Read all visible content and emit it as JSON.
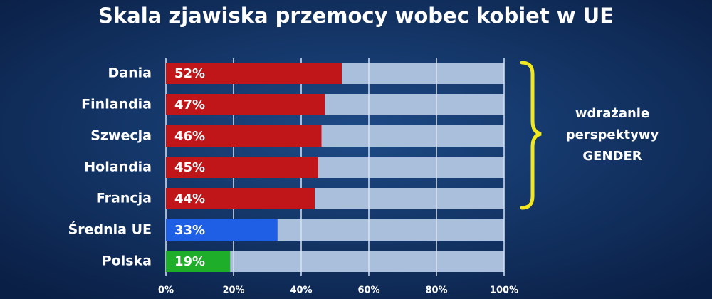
{
  "chart_data": {
    "type": "bar",
    "orientation": "horizontal",
    "title": "Skala zjawiska przemocy wobec kobiet w UE",
    "categories": [
      "Dania",
      "Finlandia",
      "Szwecja",
      "Holandia",
      "Francja",
      "Średnia UE",
      "Polska"
    ],
    "values": [
      52,
      47,
      46,
      45,
      44,
      33,
      19
    ],
    "value_labels": [
      "52%",
      "47%",
      "46%",
      "45%",
      "44%",
      "33%",
      "19%"
    ],
    "colors": [
      "#c0161a",
      "#c0161a",
      "#c0161a",
      "#c0161a",
      "#c0161a",
      "#1f5fe6",
      "#1fae2a"
    ],
    "background_color": "#a9bfdc",
    "xlim": [
      0,
      100
    ],
    "xticks": [
      {
        "value": 0,
        "label": "0%"
      },
      {
        "value": 20,
        "label": "20%"
      },
      {
        "value": 40,
        "label": "40%"
      },
      {
        "value": 60,
        "label": "60%"
      },
      {
        "value": 80,
        "label": "80%"
      },
      {
        "value": 100,
        "label": "100%"
      }
    ],
    "grid": true,
    "annotation": [
      "wdrażanie",
      "perspektywy",
      "GENDER"
    ]
  }
}
